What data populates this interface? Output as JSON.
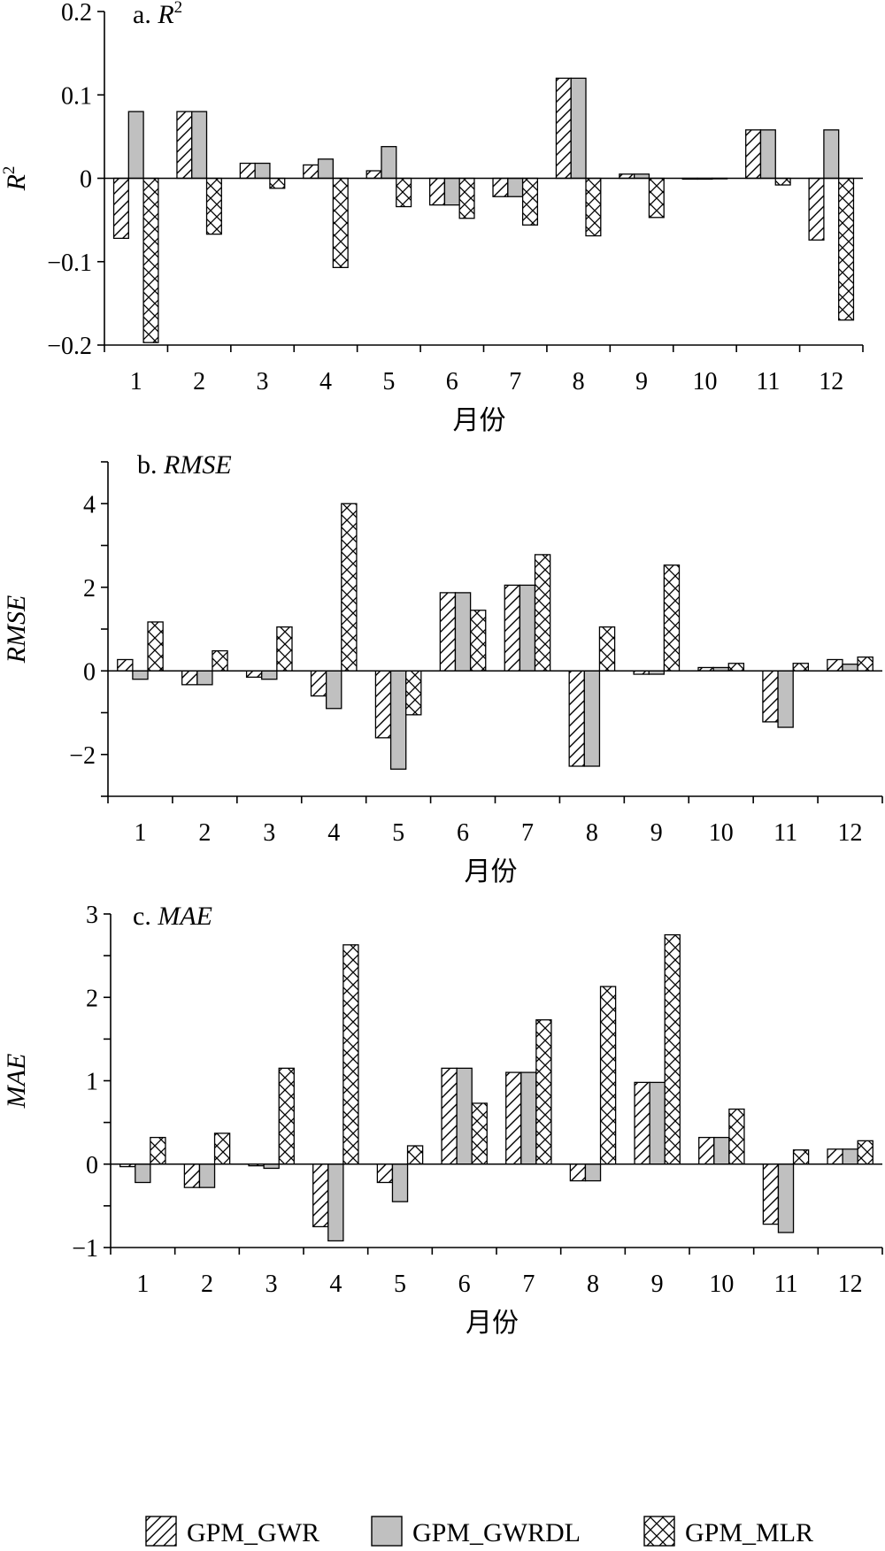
{
  "chart_data": [
    {
      "type": "bar",
      "title_prefix": "a. ",
      "title_main": "R",
      "title_sup": "2",
      "ylabel_main": "R",
      "ylabel_sup": "2",
      "xlabel": "月份",
      "categories": [
        "1",
        "2",
        "3",
        "4",
        "5",
        "6",
        "7",
        "8",
        "9",
        "10",
        "11",
        "12"
      ],
      "ylim": [
        -0.2,
        0.2
      ],
      "yticks": [
        -0.2,
        -0.1,
        0,
        0.1,
        0.2
      ],
      "ytick_labels": [
        "−0.2",
        "−0.1",
        "0",
        "0.1",
        "0.2"
      ],
      "series": [
        {
          "name": "GPM_GWR",
          "pattern": "diag",
          "values": [
            -0.072,
            0.08,
            0.018,
            0.016,
            0.009,
            -0.032,
            -0.022,
            0.12,
            0.005,
            -0.001,
            0.058,
            -0.074
          ]
        },
        {
          "name": "GPM_GWRDL",
          "pattern": "gray",
          "values": [
            0.08,
            0.08,
            0.018,
            0.023,
            0.038,
            -0.032,
            -0.022,
            0.12,
            0.005,
            -0.001,
            0.058,
            0.058
          ]
        },
        {
          "name": "GPM_MLR",
          "pattern": "cross",
          "values": [
            -0.197,
            -0.067,
            -0.012,
            -0.107,
            -0.034,
            -0.048,
            -0.056,
            -0.069,
            -0.047,
            0.0,
            -0.008,
            -0.17
          ]
        }
      ]
    },
    {
      "type": "bar",
      "title_prefix": "b. ",
      "title_main": "RMSE",
      "title_sup": "",
      "ylabel_main": "RMSE",
      "ylabel_sup": "",
      "xlabel": "月份",
      "categories": [
        "1",
        "2",
        "3",
        "4",
        "5",
        "6",
        "7",
        "8",
        "9",
        "10",
        "11",
        "12"
      ],
      "ylim": [
        -3,
        5
      ],
      "yticks": [
        -3,
        -2,
        -1,
        0,
        1,
        2,
        3,
        4,
        5
      ],
      "ytick_labels": [
        "",
        "−2",
        "",
        "0",
        "",
        "2",
        "",
        "4",
        ""
      ],
      "series": [
        {
          "name": "GPM_GWR",
          "pattern": "diag",
          "values": [
            0.27,
            -0.33,
            -0.15,
            -0.6,
            -1.6,
            1.87,
            2.05,
            -2.28,
            -0.08,
            0.08,
            -1.22,
            0.27
          ]
        },
        {
          "name": "GPM_GWRDL",
          "pattern": "gray",
          "values": [
            -0.2,
            -0.33,
            -0.2,
            -0.9,
            -2.35,
            1.87,
            2.05,
            -2.28,
            -0.08,
            0.08,
            -1.35,
            0.16
          ]
        },
        {
          "name": "GPM_MLR",
          "pattern": "cross",
          "values": [
            1.17,
            0.48,
            1.05,
            4.0,
            -1.05,
            1.45,
            2.78,
            1.05,
            2.53,
            0.18,
            0.18,
            0.33
          ]
        }
      ]
    },
    {
      "type": "bar",
      "title_prefix": "c. ",
      "title_main": "MAE",
      "title_sup": "",
      "ylabel_main": "MAE",
      "ylabel_sup": "",
      "xlabel": "月份",
      "categories": [
        "1",
        "2",
        "3",
        "4",
        "5",
        "6",
        "7",
        "8",
        "9",
        "10",
        "11",
        "12"
      ],
      "ylim": [
        -1,
        3
      ],
      "yticks": [
        -1,
        -0.5,
        0,
        0.5,
        1,
        1.5,
        2,
        2.5,
        3
      ],
      "ytick_labels": [
        "−1",
        "",
        "0",
        "",
        "1",
        "",
        "2",
        "",
        "3"
      ],
      "series": [
        {
          "name": "GPM_GWR",
          "pattern": "diag",
          "values": [
            -0.03,
            -0.28,
            -0.02,
            -0.75,
            -0.22,
            1.15,
            1.1,
            -0.2,
            0.98,
            0.32,
            -0.72,
            0.18
          ]
        },
        {
          "name": "GPM_GWRDL",
          "pattern": "gray",
          "values": [
            -0.22,
            -0.28,
            -0.05,
            -0.92,
            -0.45,
            1.15,
            1.1,
            -0.2,
            0.98,
            0.32,
            -0.82,
            0.18
          ]
        },
        {
          "name": "GPM_MLR",
          "pattern": "cross",
          "values": [
            0.32,
            0.37,
            1.15,
            2.63,
            0.22,
            0.73,
            1.73,
            2.13,
            2.75,
            0.66,
            0.17,
            0.28
          ]
        }
      ]
    }
  ],
  "legend": {
    "position": "bottom",
    "items": [
      {
        "label": "GPM_GWR",
        "pattern": "diag"
      },
      {
        "label": "GPM_GWRDL",
        "pattern": "gray"
      },
      {
        "label": "GPM_MLR",
        "pattern": "cross"
      }
    ]
  },
  "colors": {
    "bar_gray": "#c0c0c0",
    "stroke": "#000000",
    "background": "#ffffff"
  }
}
